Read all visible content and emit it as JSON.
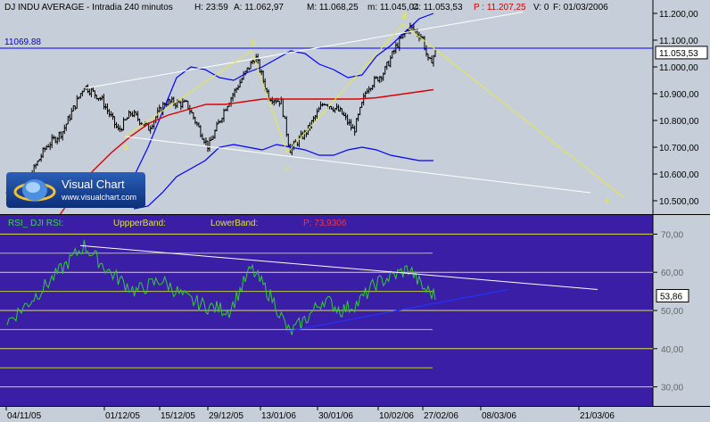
{
  "header": {
    "title": "DJ INDU AVERAGE - Intradia 240 minutos",
    "h": "H: 23:59",
    "a": "A: 11.062,97",
    "m_high": "M: 11.068,25",
    "m_low": "m: 11.045,04",
    "c": "C: 11.053,53",
    "p": "P : 11.207,25",
    "v": "V: 0",
    "f": "F: 01/03/2006"
  },
  "price_panel": {
    "level_line_label": "11069.88",
    "current_price_tag": "11.053,53",
    "y_ticks": [
      "11.200,00",
      "11.100,00",
      "11.000,00",
      "10.900,00",
      "10.800,00",
      "10.700,00",
      "10.600,00",
      "10.500,00"
    ],
    "wave_labels": [
      "a",
      "b",
      "c",
      "d",
      "e"
    ]
  },
  "logo": {
    "name": "Visual Chart",
    "url": "www.visualchart.com"
  },
  "rsi_panel": {
    "legend_rsi": "RSI_ DJI RSI:",
    "legend_upper": "UppperBand:",
    "legend_lower": "LowerBand:",
    "legend_p": "P: 73,9306",
    "y_ticks": [
      "70,00",
      "60,00",
      "50,00",
      "40,00",
      "30,00"
    ],
    "current_tag": "53,86"
  },
  "x_axis": {
    "ticks": [
      "04/11/05",
      "01/12/05",
      "15/12/05",
      "29/12/05",
      "13/01/06",
      "30/01/06",
      "10/02/06",
      "27/02/06",
      "08/03/06",
      "21/03/06"
    ]
  },
  "colors": {
    "price_bg": "#c6cfd9",
    "rsi_bg": "#3a1ea6",
    "bars": "#000000",
    "bollinger": "#0000ff",
    "ma": "#dd0000",
    "trendline": "#ffffff",
    "wave": "#e8e840",
    "rsi_line": "#33cc33"
  },
  "chart_data": [
    {
      "type": "bar",
      "title": "DJ INDU AVERAGE - Intradia 240 minutos",
      "x": [
        "04/11/05",
        "01/12/05",
        "15/12/05",
        "29/12/05",
        "13/01/06",
        "30/01/06",
        "10/02/06",
        "27/02/06"
      ],
      "close_approx": [
        10530,
        10920,
        10780,
        10700,
        10880,
        10780,
        10960,
        11053.53
      ],
      "ylim": [
        10450,
        11250
      ],
      "ma_approx": [
        10500,
        10700,
        10820,
        10860,
        10880,
        10890,
        10900,
        10920
      ],
      "upper_band_approx": [
        10650,
        11000,
        10970,
        10990,
        11020,
        10960,
        11060,
        11180
      ],
      "lower_band_approx": [
        10500,
        10600,
        10700,
        10700,
        10680,
        10690,
        10680,
        10650
      ],
      "horizontal_line": 11069.88,
      "wave_points": {
        "a": 10740,
        "b": 11050,
        "c": 10670,
        "d": 11160,
        "e": 10520
      }
    },
    {
      "type": "line",
      "title": "RSI_ DJI RSI",
      "x": [
        "04/11/05",
        "01/12/05",
        "15/12/05",
        "29/12/05",
        "13/01/06",
        "30/01/06",
        "10/02/06",
        "27/02/06"
      ],
      "values": [
        47,
        67,
        58,
        55,
        46,
        52,
        57,
        53.86
      ],
      "ylim": [
        25,
        75
      ],
      "levels": [
        30,
        40,
        50,
        60,
        70
      ]
    }
  ]
}
